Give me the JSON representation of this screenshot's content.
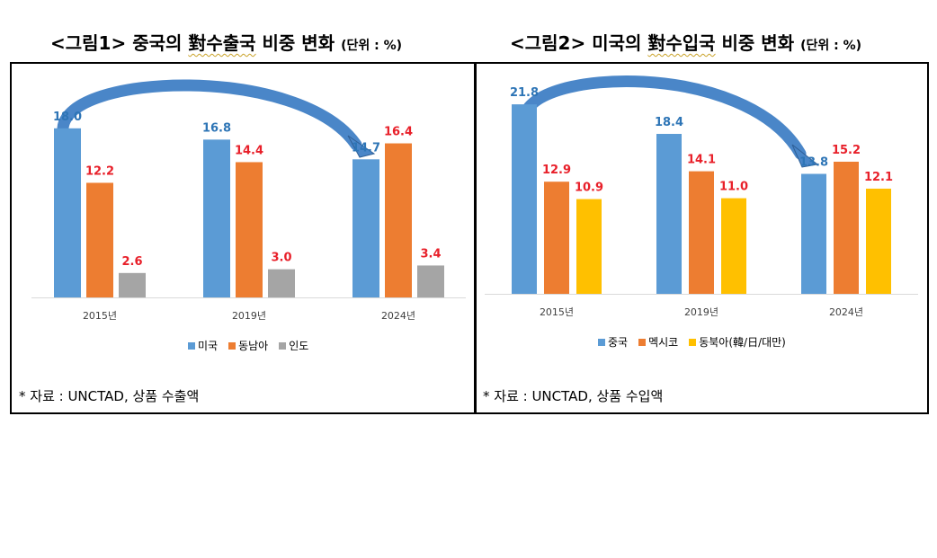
{
  "figure1": {
    "title_main_pre": "<그림1> 중국의 ",
    "title_main_hl": "對수출국",
    "title_main_post": " 비중 변화",
    "title_unit": "(단위 : %)",
    "source": "* 자료 : UNCTAD, 상품 수출액"
  },
  "figure2": {
    "title_main_pre": "<그림2> 미국의 ",
    "title_main_hl": "對수입국",
    "title_main_post": " 비중 변화",
    "title_unit": "(단위 : %)",
    "source": "* 자료 : UNCTAD, 상품 수입액"
  },
  "chart_data": [
    {
      "type": "bar",
      "categories": [
        "2015년",
        "2019년",
        "2024년"
      ],
      "series": [
        {
          "name": "미국",
          "values": [
            18.0,
            16.8,
            14.7
          ],
          "color": "#5B9BD5",
          "label_color": "#2E75B6"
        },
        {
          "name": "동남아",
          "values": [
            12.2,
            14.4,
            16.4
          ],
          "color": "#ED7D31",
          "label_color": "#E8202A"
        },
        {
          "name": "인도",
          "values": [
            2.6,
            3.0,
            3.4
          ],
          "color": "#A5A5A5",
          "label_color": "#E8202A"
        }
      ],
      "ylim": [
        0,
        22
      ],
      "legend": "bottom",
      "grid": false
    },
    {
      "type": "bar",
      "categories": [
        "2015년",
        "2019년",
        "2024년"
      ],
      "series": [
        {
          "name": "중국",
          "values": [
            21.8,
            18.4,
            13.8
          ],
          "color": "#5B9BD5",
          "label_color": "#2E75B6"
        },
        {
          "name": "멕시코",
          "values": [
            12.9,
            14.1,
            15.2
          ],
          "color": "#ED7D31",
          "label_color": "#E8202A"
        },
        {
          "name": "동북아(韓/日/대만)",
          "values": [
            10.9,
            11.0,
            12.1
          ],
          "color": "#FFC000",
          "label_color": "#E8202A"
        }
      ],
      "ylim": [
        0,
        24.5
      ],
      "legend": "bottom",
      "grid": false
    }
  ]
}
